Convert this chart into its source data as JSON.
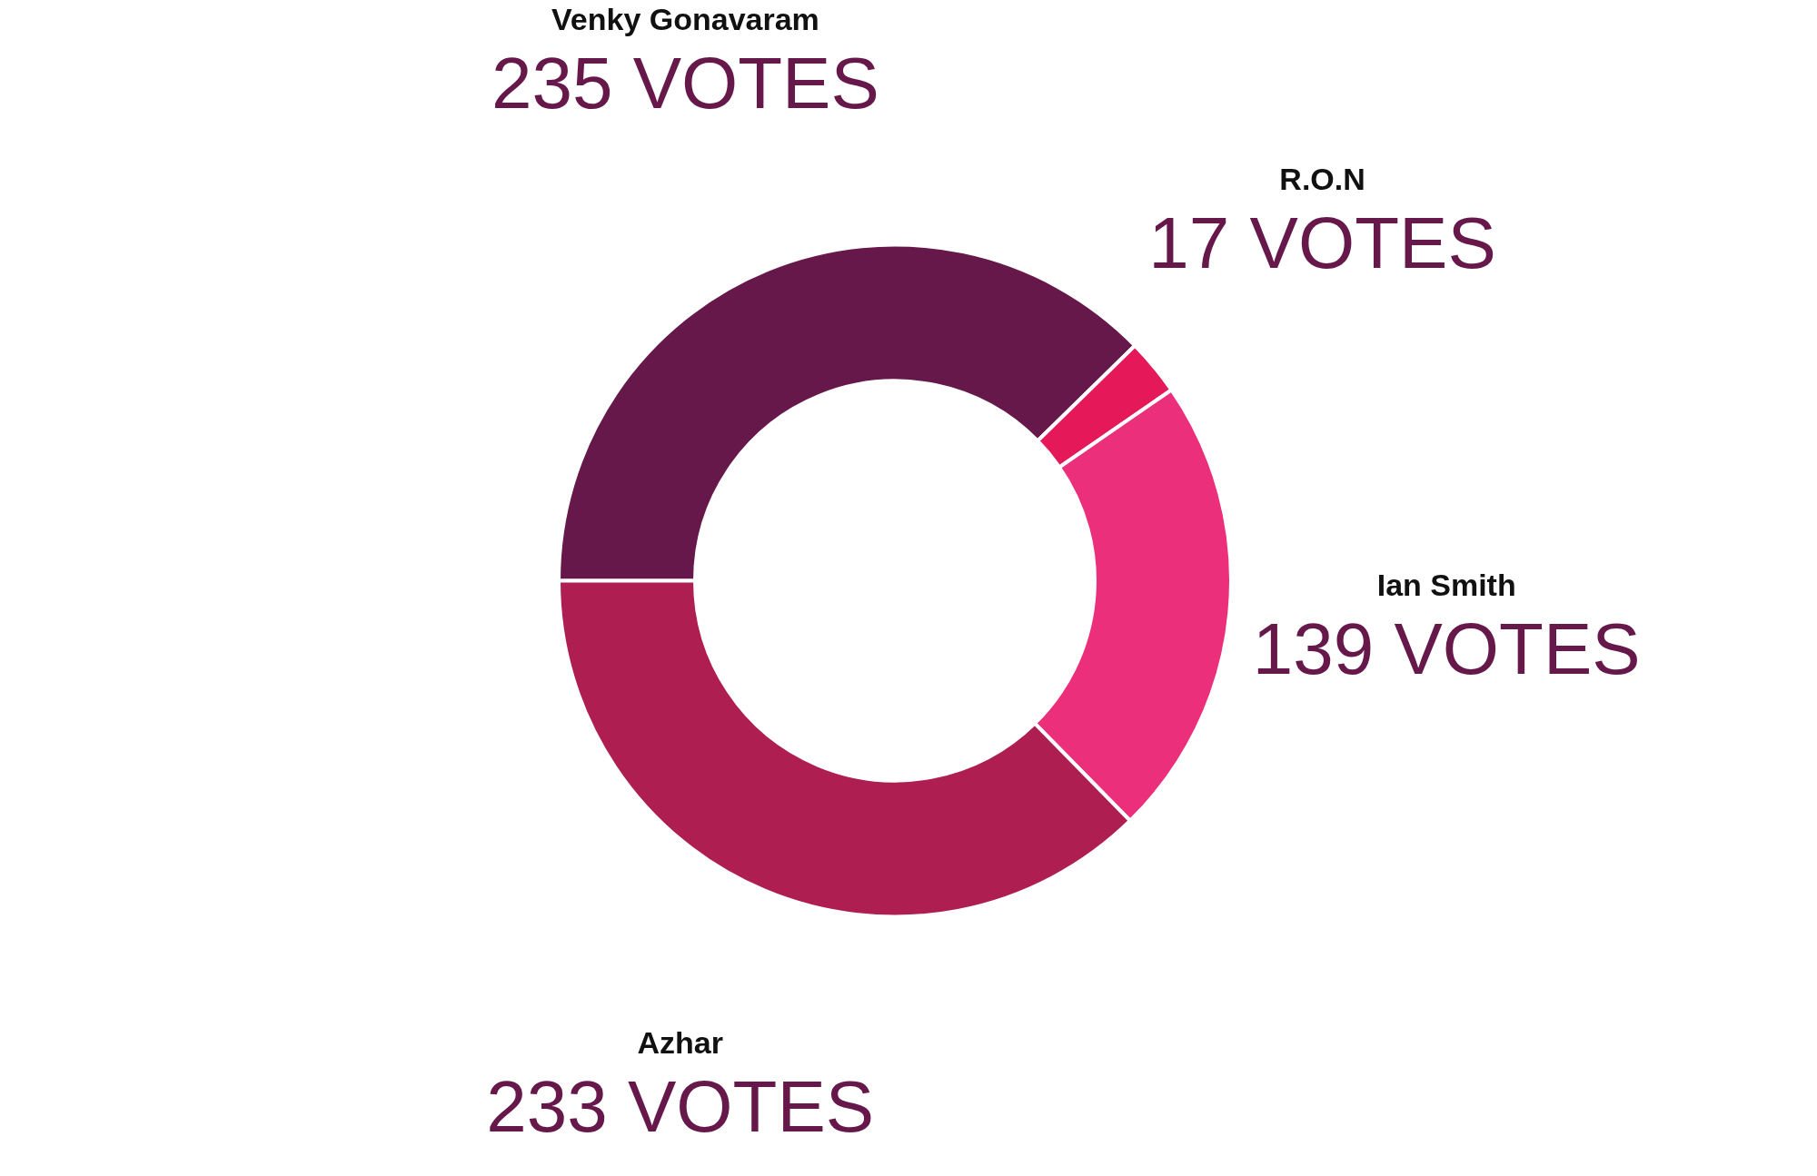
{
  "chart_data": {
    "type": "donut",
    "categories": [
      "Venky Gonavaram",
      "R.O.N",
      "Ian Smith",
      "Azhar"
    ],
    "values": [
      235,
      17,
      139,
      233
    ],
    "colors": [
      "#66184a",
      "#e5195a",
      "#ec2f7a",
      "#ae1e51"
    ],
    "value_labels": [
      "235 VOTES",
      "17 VOTES",
      "139 VOTES",
      "233 VOTES"
    ]
  }
}
